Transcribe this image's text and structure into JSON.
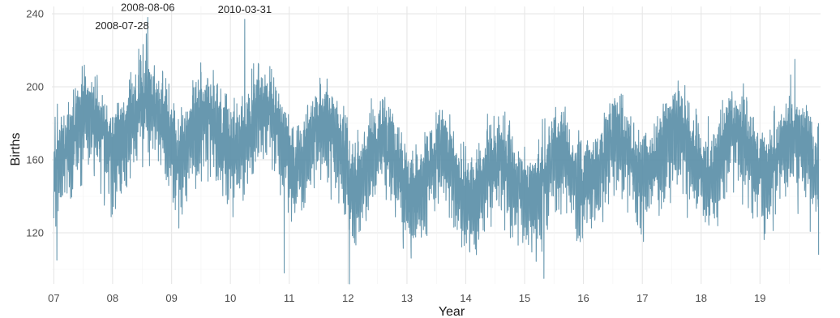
{
  "chart_data": {
    "type": "line",
    "title": "",
    "xlabel": "Year",
    "ylabel": "Births",
    "xlim": [
      "2006-12-20",
      "2020-01-12"
    ],
    "ylim": [
      92,
      244
    ],
    "x_ticks": [
      {
        "label": "07",
        "date": "2007-01-01"
      },
      {
        "label": "08",
        "date": "2008-01-01"
      },
      {
        "label": "09",
        "date": "2009-01-01"
      },
      {
        "label": "10",
        "date": "2010-01-01"
      },
      {
        "label": "11",
        "date": "2011-01-01"
      },
      {
        "label": "12",
        "date": "2012-01-01"
      },
      {
        "label": "13",
        "date": "2013-01-01"
      },
      {
        "label": "14",
        "date": "2014-01-01"
      },
      {
        "label": "15",
        "date": "2015-01-01"
      },
      {
        "label": "16",
        "date": "2016-01-01"
      },
      {
        "label": "17",
        "date": "2017-01-01"
      },
      {
        "label": "18",
        "date": "2018-01-01"
      },
      {
        "label": "19",
        "date": "2019-01-01"
      }
    ],
    "y_ticks": [
      120,
      160,
      200,
      240
    ],
    "grid": true,
    "legend": "none",
    "color": "#5b8fa8",
    "series_description_samples": [
      {
        "x": "2007-01-01",
        "y": 128
      },
      {
        "x": "2007-01-20",
        "y": 105
      },
      {
        "x": "2008-07-28",
        "y": 229
      },
      {
        "x": "2008-08-06",
        "y": 238
      },
      {
        "x": "2010-03-31",
        "y": 237
      },
      {
        "x": "2010-12-01",
        "y": 98
      },
      {
        "x": "2012-01-10",
        "y": 92
      },
      {
        "x": "2015-05-01",
        "y": 95
      },
      {
        "x": "2019-12-31",
        "y": 108
      }
    ],
    "annotations": [
      {
        "label": "2008-07-28",
        "x": "2008-07-28",
        "y": 229
      },
      {
        "label": "2008-08-06",
        "x": "2008-08-06",
        "y": 238
      },
      {
        "label": "2010-03-31",
        "x": "2010-03-31",
        "y": 237
      }
    ]
  }
}
